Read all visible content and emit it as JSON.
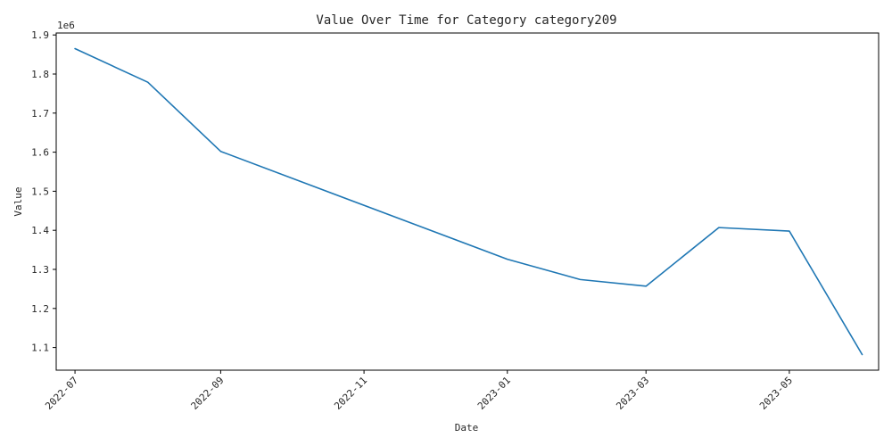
{
  "chart_data": {
    "type": "line",
    "title": "Value Over Time for Category category209",
    "xlabel": "Date",
    "ylabel": "Value",
    "y_offset_label": "1e6",
    "grid": false,
    "legend": "none",
    "line_color": "#1f77b4",
    "xlim": [
      "2022-06-23",
      "2023-06-08"
    ],
    "ylim": [
      1.042,
      1.905
    ],
    "x_ticks": [
      {
        "date": "2022-07-01",
        "label": "2022-07"
      },
      {
        "date": "2022-09-01",
        "label": "2022-09"
      },
      {
        "date": "2022-11-01",
        "label": "2022-11"
      },
      {
        "date": "2023-01-01",
        "label": "2023-01"
      },
      {
        "date": "2023-03-01",
        "label": "2023-03"
      },
      {
        "date": "2023-05-01",
        "label": "2023-05"
      }
    ],
    "y_ticks": [
      {
        "value": 1.1,
        "label": "1.1"
      },
      {
        "value": 1.2,
        "label": "1.2"
      },
      {
        "value": 1.3,
        "label": "1.3"
      },
      {
        "value": 1.4,
        "label": "1.4"
      },
      {
        "value": 1.5,
        "label": "1.5"
      },
      {
        "value": 1.6,
        "label": "1.6"
      },
      {
        "value": 1.7,
        "label": "1.7"
      },
      {
        "value": 1.8,
        "label": "1.8"
      },
      {
        "value": 1.9,
        "label": "1.9"
      }
    ],
    "x": [
      "2022-07-01",
      "2022-08-01",
      "2022-09-01",
      "2023-01-01",
      "2023-02-01",
      "2023-03-01",
      "2023-04-01",
      "2023-05-01",
      "2023-06-01"
    ],
    "series": [
      {
        "values": [
          1865000,
          1779000,
          1602000,
          1326000,
          1274000,
          1257000,
          1407000,
          1398000,
          1082000
        ]
      }
    ]
  }
}
